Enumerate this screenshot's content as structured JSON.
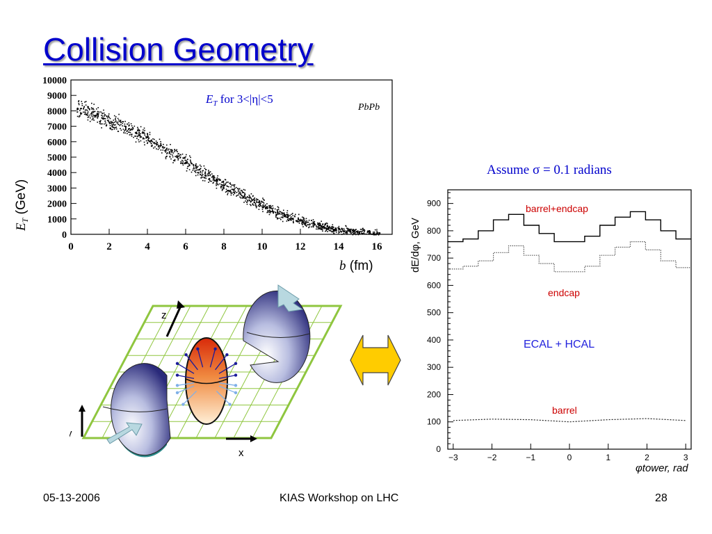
{
  "slide": {
    "title": "Collision Geometry",
    "footer": {
      "date": "05-13-2006",
      "center": "KIAS Workshop on LHC",
      "page": "28"
    }
  },
  "scatter": {
    "title_main": "E",
    "title_sub": "T",
    "title_rest": " for 3<|η|<5",
    "tag": "PbPb",
    "ylabel_main": "E",
    "ylabel_sub": "T",
    "ylabel_unit": " (GeV)",
    "xlabel_main": "b",
    "xlabel_unit": " (fm)"
  },
  "diagram": {
    "axis_z": "z",
    "axis_x": "x",
    "axis_y": "y",
    "colors": {
      "grid": "#8fc63f",
      "arrow": "#ffcc00",
      "nucleus": "#3a3a8c",
      "overlap": "#e34a12"
    }
  },
  "assumption": "Assume σ = 0.1 radians",
  "chart_data": [
    {
      "type": "scatter",
      "title": "E_T for 3<|η|<5",
      "xlabel": "b (fm)",
      "ylabel": "E_T (GeV)",
      "xlim": [
        0,
        16.8
      ],
      "ylim": [
        0,
        10000
      ],
      "xticks": [
        "0",
        "2",
        "4",
        "6",
        "8",
        "10",
        "12",
        "14",
        "16"
      ],
      "yticks": [
        "0",
        "1000",
        "2000",
        "3000",
        "4000",
        "5000",
        "6000",
        "7000",
        "8000",
        "9000",
        "10000"
      ],
      "series": [
        {
          "name": "PbPb",
          "x": [
            0.3,
            1,
            2,
            3,
            4,
            5,
            6,
            7,
            8,
            9,
            10,
            11,
            12,
            13,
            14,
            15,
            16
          ],
          "y": [
            8200,
            7900,
            7400,
            6900,
            6200,
            5400,
            4700,
            3900,
            3200,
            2500,
            1900,
            1300,
            900,
            550,
            300,
            150,
            50
          ]
        }
      ]
    },
    {
      "type": "line",
      "title": "ECAL + HCAL",
      "xlabel": "φtower, rad",
      "ylabel": "dE/dφ, GeV",
      "xlim": [
        -3.14,
        3.14
      ],
      "ylim": [
        0,
        950
      ],
      "xticks": [
        "−3",
        "−2",
        "−1",
        "0",
        "1",
        "2",
        "3"
      ],
      "yticks": [
        "0",
        "100",
        "200",
        "300",
        "400",
        "500",
        "600",
        "700",
        "800",
        "900"
      ],
      "series": [
        {
          "name": "barrel+endcap",
          "x": [
            -3.0,
            -2.6,
            -2.2,
            -1.8,
            -1.4,
            -1.0,
            -0.6,
            -0.2,
            0.2,
            0.6,
            1.0,
            1.4,
            1.8,
            2.2,
            2.6,
            3.0
          ],
          "y": [
            760,
            770,
            800,
            840,
            860,
            820,
            790,
            760,
            760,
            780,
            820,
            850,
            870,
            840,
            800,
            770
          ]
        },
        {
          "name": "endcap",
          "x": [
            -3.0,
            -2.6,
            -2.2,
            -1.8,
            -1.4,
            -1.0,
            -0.6,
            -0.2,
            0.2,
            0.6,
            1.0,
            1.4,
            1.8,
            2.2,
            2.6,
            3.0
          ],
          "y": [
            660,
            670,
            690,
            720,
            745,
            710,
            680,
            650,
            650,
            670,
            710,
            740,
            760,
            730,
            690,
            665
          ]
        },
        {
          "name": "barrel",
          "x": [
            -3.0,
            -2.0,
            -1.0,
            0,
            1.0,
            2.0,
            3.0
          ],
          "y": [
            105,
            110,
            108,
            100,
            108,
            112,
            105
          ]
        }
      ]
    }
  ]
}
